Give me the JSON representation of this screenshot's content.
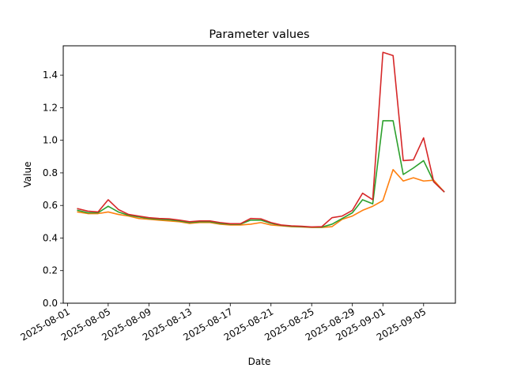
{
  "chart_data": {
    "type": "line",
    "title": "Parameter values",
    "xlabel": "Date",
    "ylabel": "Value",
    "x_type": "date",
    "xlim": [
      "2025-07-31T14:00",
      "2025-09-08T03:00"
    ],
    "ylim": [
      0.0,
      1.58
    ],
    "x_ticks": [
      "2025-08-01",
      "2025-08-05",
      "2025-08-09",
      "2025-08-13",
      "2025-08-17",
      "2025-08-21",
      "2025-08-25",
      "2025-08-29",
      "2025-09-01",
      "2025-09-05"
    ],
    "y_ticks": [
      0.0,
      0.2,
      0.4,
      0.6,
      0.8,
      1.0,
      1.2,
      1.4
    ],
    "grid": false,
    "series": [
      {
        "color": "#1f77b4",
        "x": [
          "2025-09-06",
          "2025-09-07"
        ],
        "y": [
          0.745,
          0.685
        ]
      },
      {
        "color": "#ff7f0e",
        "x": [
          "2025-08-02",
          "2025-08-03",
          "2025-08-04",
          "2025-08-05",
          "2025-08-06",
          "2025-08-07",
          "2025-08-08",
          "2025-08-09",
          "2025-08-10",
          "2025-08-11",
          "2025-08-12",
          "2025-08-13",
          "2025-08-14",
          "2025-08-15",
          "2025-08-16",
          "2025-08-17",
          "2025-08-18",
          "2025-08-19",
          "2025-08-20",
          "2025-08-21",
          "2025-08-22",
          "2025-08-23",
          "2025-08-24",
          "2025-08-25",
          "2025-08-26",
          "2025-08-27",
          "2025-08-28",
          "2025-08-29",
          "2025-08-30",
          "2025-08-31",
          "2025-09-01",
          "2025-09-02",
          "2025-09-03",
          "2025-09-04",
          "2025-09-05",
          "2025-09-06",
          "2025-09-07"
        ],
        "y": [
          0.56,
          0.55,
          0.55,
          0.56,
          0.545,
          0.535,
          0.52,
          0.515,
          0.51,
          0.505,
          0.5,
          0.49,
          0.495,
          0.495,
          0.485,
          0.48,
          0.48,
          0.485,
          0.495,
          0.48,
          0.475,
          0.47,
          0.468,
          0.465,
          0.465,
          0.47,
          0.515,
          0.535,
          0.57,
          0.595,
          0.63,
          0.82,
          0.75,
          0.77,
          0.75,
          0.755,
          0.685
        ]
      },
      {
        "color": "#2ca02c",
        "x": [
          "2025-08-02",
          "2025-08-03",
          "2025-08-04",
          "2025-08-05",
          "2025-08-06",
          "2025-08-07",
          "2025-08-08",
          "2025-08-09",
          "2025-08-10",
          "2025-08-11",
          "2025-08-12",
          "2025-08-13",
          "2025-08-14",
          "2025-08-15",
          "2025-08-16",
          "2025-08-17",
          "2025-08-18",
          "2025-08-19",
          "2025-08-20",
          "2025-08-21",
          "2025-08-22",
          "2025-08-23",
          "2025-08-24",
          "2025-08-25",
          "2025-08-26",
          "2025-08-27",
          "2025-08-28",
          "2025-08-29",
          "2025-08-30",
          "2025-08-31",
          "2025-09-01",
          "2025-09-02",
          "2025-09-03",
          "2025-09-04",
          "2025-09-05",
          "2025-09-06",
          "2025-09-07"
        ],
        "y": [
          0.57,
          0.555,
          0.555,
          0.595,
          0.56,
          0.54,
          0.53,
          0.52,
          0.515,
          0.512,
          0.505,
          0.495,
          0.5,
          0.5,
          0.49,
          0.485,
          0.485,
          0.51,
          0.51,
          0.49,
          0.478,
          0.472,
          0.47,
          0.467,
          0.467,
          0.485,
          0.52,
          0.555,
          0.635,
          0.61,
          1.12,
          1.12,
          0.79,
          0.83,
          0.875,
          0.745,
          0.685
        ]
      },
      {
        "color": "#d62728",
        "x": [
          "2025-08-02",
          "2025-08-03",
          "2025-08-04",
          "2025-08-05",
          "2025-08-06",
          "2025-08-07",
          "2025-08-08",
          "2025-08-09",
          "2025-08-10",
          "2025-08-11",
          "2025-08-12",
          "2025-08-13",
          "2025-08-14",
          "2025-08-15",
          "2025-08-16",
          "2025-08-17",
          "2025-08-18",
          "2025-08-19",
          "2025-08-20",
          "2025-08-21",
          "2025-08-22",
          "2025-08-23",
          "2025-08-24",
          "2025-08-25",
          "2025-08-26",
          "2025-08-27",
          "2025-08-28",
          "2025-08-29",
          "2025-08-30",
          "2025-08-31",
          "2025-09-01",
          "2025-09-02",
          "2025-09-03",
          "2025-09-04",
          "2025-09-05",
          "2025-09-06",
          "2025-09-07"
        ],
        "y": [
          0.58,
          0.565,
          0.56,
          0.635,
          0.575,
          0.545,
          0.535,
          0.525,
          0.52,
          0.518,
          0.51,
          0.5,
          0.505,
          0.505,
          0.495,
          0.488,
          0.488,
          0.52,
          0.518,
          0.495,
          0.48,
          0.475,
          0.472,
          0.468,
          0.47,
          0.525,
          0.535,
          0.57,
          0.675,
          0.635,
          1.54,
          1.52,
          0.875,
          0.88,
          1.015,
          0.745,
          0.685
        ]
      }
    ]
  }
}
